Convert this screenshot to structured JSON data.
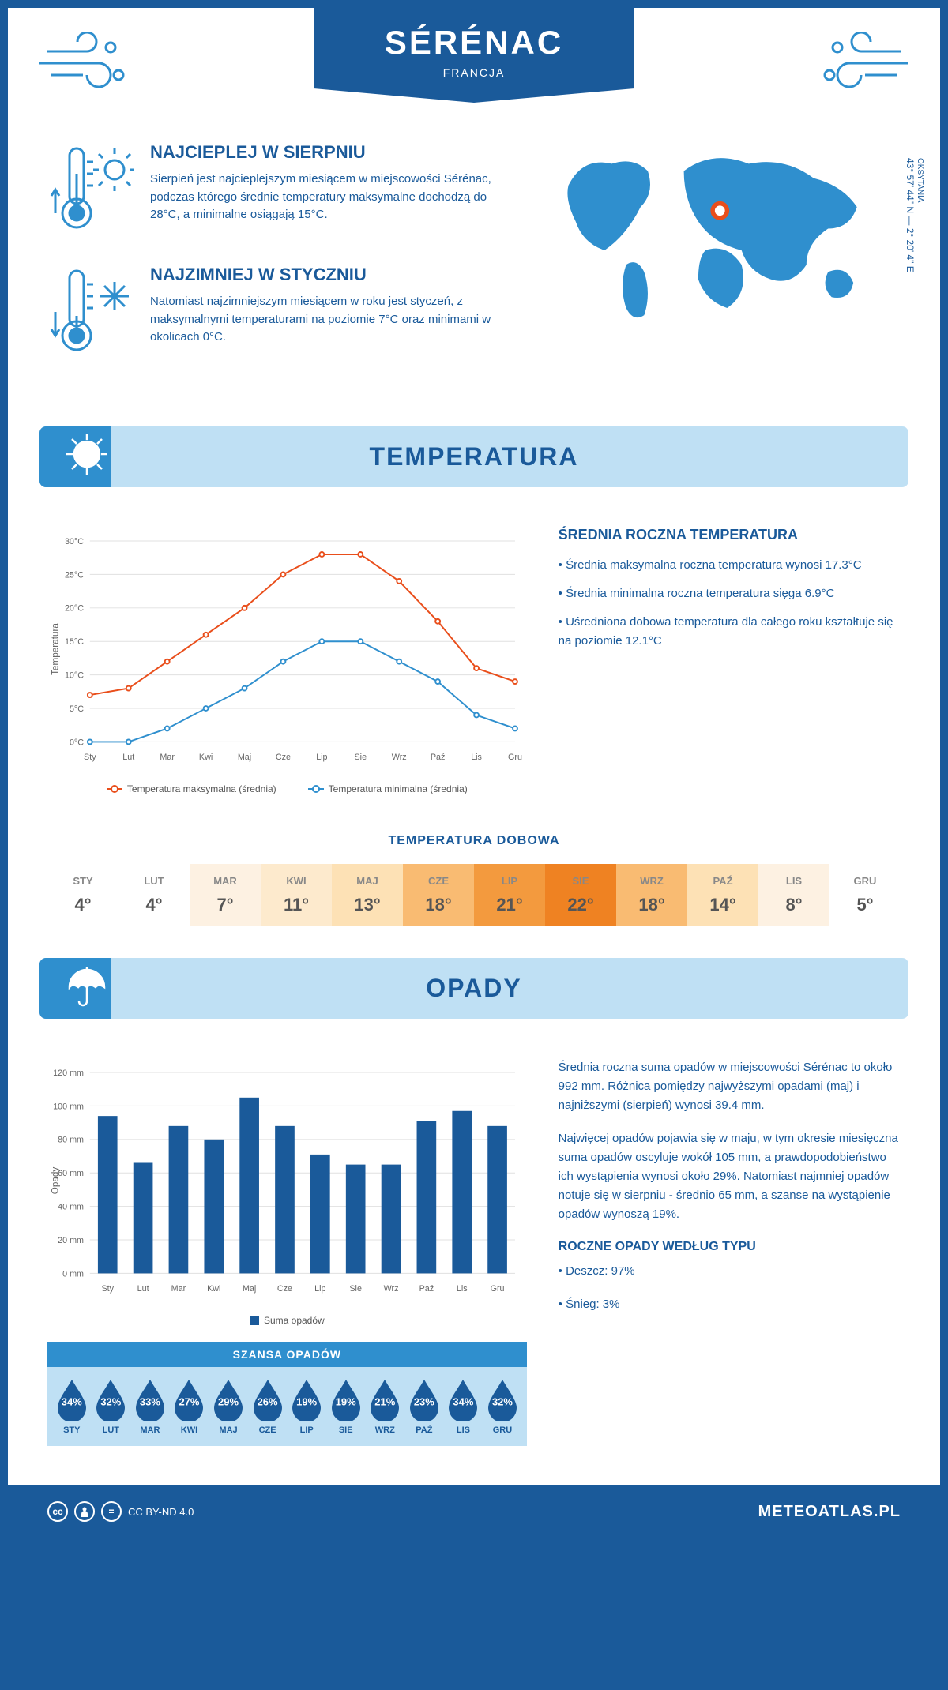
{
  "header": {
    "title": "SÉRÉNAC",
    "country": "FRANCJA"
  },
  "coords": {
    "region": "OKSYTANIA",
    "text": "43° 57' 44\" N — 2° 20' 4\" E"
  },
  "intro": {
    "hot": {
      "title": "NAJCIEPLEJ W SIERPNIU",
      "text": "Sierpień jest najcieplejszym miesiącem w miejscowości Sérénac, podczas którego średnie temperatury maksymalne dochodzą do 28°C, a minimalne osiągają 15°C."
    },
    "cold": {
      "title": "NAJZIMNIEJ W STYCZNIU",
      "text": "Natomiast najzimniejszym miesiącem w roku jest styczeń, z maksymalnymi temperaturami na poziomie 7°C oraz minimami w okolicach 0°C."
    }
  },
  "temperature_section": {
    "title": "TEMPERATURA",
    "chart": {
      "type": "line",
      "months": [
        "Sty",
        "Lut",
        "Mar",
        "Kwi",
        "Maj",
        "Cze",
        "Lip",
        "Sie",
        "Wrz",
        "Paź",
        "Lis",
        "Gru"
      ],
      "max_series": {
        "label": "Temperatura maksymalna (średnia)",
        "color": "#e94e1b",
        "values": [
          7,
          8,
          12,
          16,
          20,
          25,
          28,
          28,
          24,
          18,
          11,
          9
        ]
      },
      "min_series": {
        "label": "Temperatura minimalna (średnia)",
        "color": "#2f8fce",
        "values": [
          0,
          0,
          2,
          5,
          8,
          12,
          15,
          15,
          12,
          9,
          4,
          2
        ]
      },
      "ylim": [
        0,
        30
      ],
      "ytick_step": 5,
      "y_unit": "°C",
      "y_axis_title": "Temperatura",
      "grid_color": "#e0e0e0",
      "background": "#ffffff",
      "line_width": 2,
      "marker_radius": 3
    },
    "side": {
      "title": "ŚREDNIA ROCZNA TEMPERATURA",
      "bullet1": "• Średnia maksymalna roczna temperatura wynosi 17.3°C",
      "bullet2": "• Średnia minimalna roczna temperatura sięga 6.9°C",
      "bullet3": "• Uśredniona dobowa temperatura dla całego roku kształtuje się na poziomie 12.1°C"
    },
    "daily_table": {
      "title": "TEMPERATURA DOBOWA",
      "months": [
        "STY",
        "LUT",
        "MAR",
        "KWI",
        "MAJ",
        "CZE",
        "LIP",
        "SIE",
        "WRZ",
        "PAŹ",
        "LIS",
        "GRU"
      ],
      "values": [
        "4°",
        "4°",
        "7°",
        "11°",
        "13°",
        "18°",
        "21°",
        "22°",
        "18°",
        "14°",
        "8°",
        "5°"
      ],
      "colors": [
        "#ffffff",
        "#ffffff",
        "#fdf1e2",
        "#fdeacd",
        "#fde1b5",
        "#f9bb72",
        "#f39a3e",
        "#ef8222",
        "#f9bb72",
        "#fde1b5",
        "#fdf1e2",
        "#ffffff"
      ]
    }
  },
  "rain_section": {
    "title": "OPADY",
    "chart": {
      "type": "bar",
      "months": [
        "Sty",
        "Lut",
        "Mar",
        "Kwi",
        "Maj",
        "Cze",
        "Lip",
        "Sie",
        "Wrz",
        "Paź",
        "Lis",
        "Gru"
      ],
      "values": [
        94,
        66,
        88,
        80,
        105,
        88,
        71,
        65,
        65,
        91,
        97,
        88
      ],
      "bar_color": "#1a5a9a",
      "ylim": [
        0,
        120
      ],
      "ytick_step": 20,
      "y_unit": " mm",
      "y_axis_title": "Opady",
      "legend_label": "Suma opadów",
      "grid_color": "#e0e0e0",
      "background": "#ffffff",
      "bar_width": 0.55
    },
    "text": {
      "p1": "Średnia roczna suma opadów w miejscowości Sérénac to około 992 mm. Różnica pomiędzy najwyższymi opadami (maj) i najniższymi (sierpień) wynosi 39.4 mm.",
      "p2": "Najwięcej opadów pojawia się w maju, w tym okresie miesięczna suma opadów oscyluje wokół 105 mm, a prawdopodobieństwo ich wystąpienia wynosi około 29%. Natomiast najmniej opadów notuje się w sierpniu - średnio 65 mm, a szanse na wystąpienie opadów wynoszą 19%.",
      "type_title": "ROCZNE OPADY WEDŁUG TYPU",
      "type_rain": "• Deszcz: 97%",
      "type_snow": "• Śnieg: 3%"
    },
    "chance": {
      "title": "SZANSA OPADÓW",
      "months": [
        "STY",
        "LUT",
        "MAR",
        "KWI",
        "MAJ",
        "CZE",
        "LIP",
        "SIE",
        "WRZ",
        "PAŹ",
        "LIS",
        "GRU"
      ],
      "values": [
        "34%",
        "32%",
        "33%",
        "27%",
        "29%",
        "26%",
        "19%",
        "19%",
        "21%",
        "23%",
        "34%",
        "32%"
      ],
      "drop_color": "#1a5a9a",
      "row_bg": "#bfe0f4",
      "header_bg": "#2f8fce"
    }
  },
  "footer": {
    "license": "CC BY-ND 4.0",
    "site": "METEOATLAS.PL"
  },
  "palette": {
    "primary": "#1a5a9a",
    "accent": "#2f8fce",
    "light": "#bfe0f4"
  }
}
